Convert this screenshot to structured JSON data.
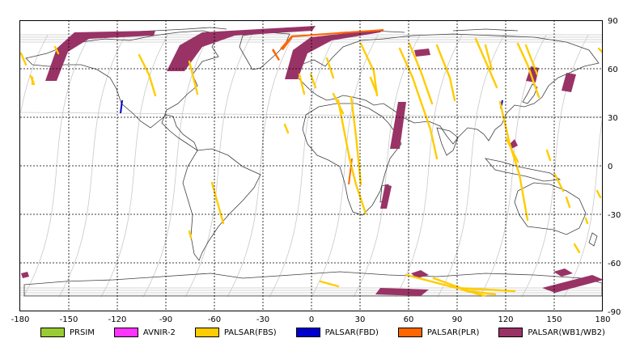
{
  "map": {
    "x_ticks": [
      "-180",
      "-150",
      "-120",
      "-90",
      "-60",
      "-30",
      "0",
      "30",
      "60",
      "90",
      "120",
      "150",
      "180"
    ],
    "y_ticks": [
      "90",
      "60",
      "30",
      "0",
      "-30",
      "-60",
      "-90"
    ],
    "xlim": [
      -180,
      180
    ],
    "ylim": [
      -90,
      90
    ],
    "grid": "dashed",
    "background": "#ffffff",
    "orbit_color": "#c8c8c8",
    "coast_color": "#404040"
  },
  "legend": [
    {
      "label": "PRSIM",
      "color": "#99cc33"
    },
    {
      "label": "AVNIR-2",
      "color": "#ff33ff"
    },
    {
      "label": "PALSAR(FBS)",
      "color": "#ffcc00"
    },
    {
      "label": "PALSAR(FBD)",
      "color": "#0000cc"
    },
    {
      "label": "PALSAR(PLR)",
      "color": "#ff6600"
    },
    {
      "label": "PALSAR(WB1/WB2)",
      "color": "#993366"
    }
  ]
}
